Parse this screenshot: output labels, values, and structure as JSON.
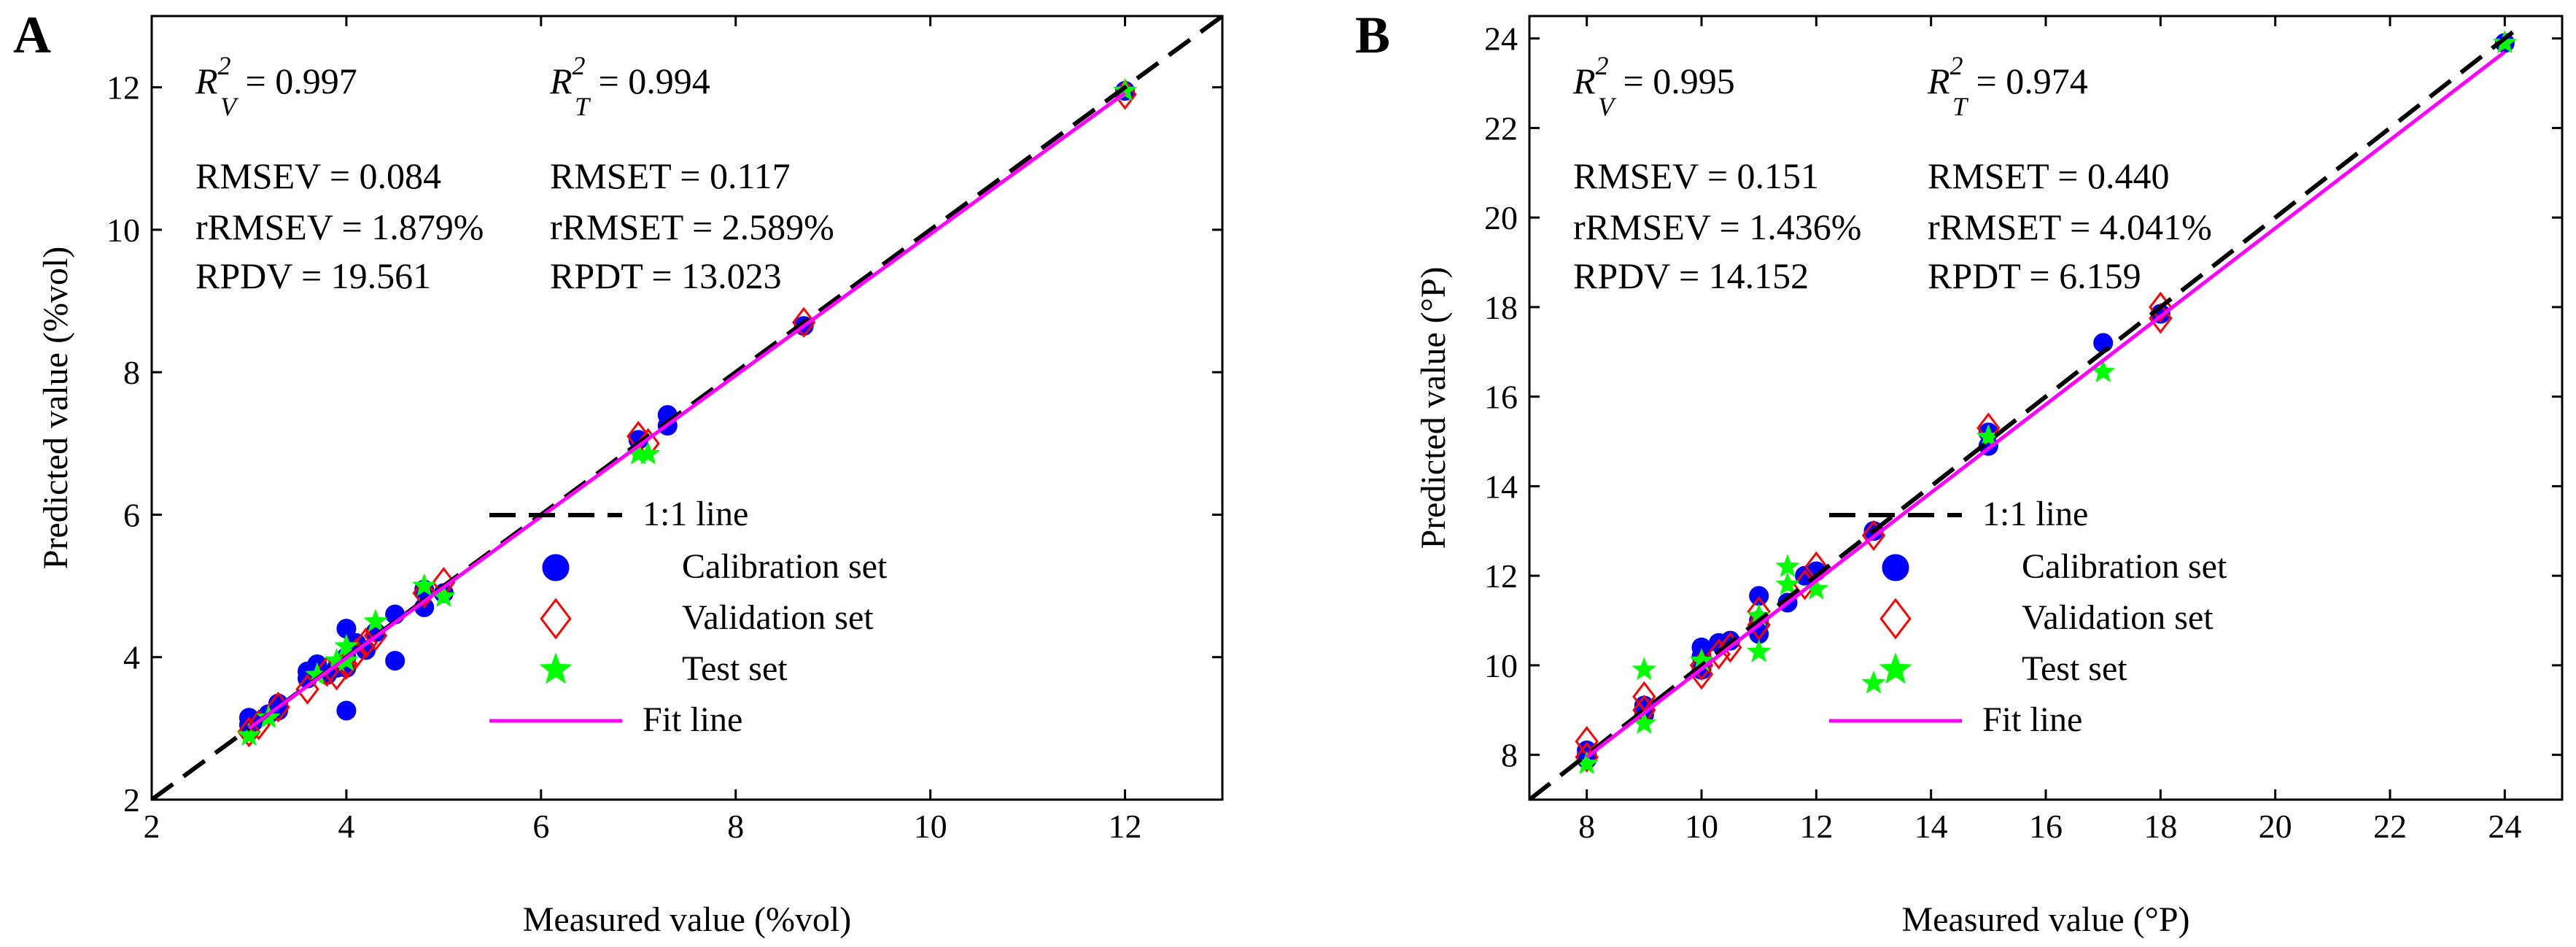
{
  "chart_data": [
    {
      "panel_label": "A",
      "type": "scatter",
      "xlabel": "Measured value (%vol)",
      "ylabel": "Predicted value (%vol)",
      "xlim": [
        2,
        13
      ],
      "ylim": [
        2,
        13
      ],
      "xticks": [
        2,
        4,
        6,
        8,
        10,
        12
      ],
      "yticks": [
        2,
        4,
        6,
        8,
        10,
        12
      ],
      "grid": false,
      "stats_left": {
        "r2_label": "R",
        "r2_sup": "2",
        "r2_sub": "V",
        "r2_value": " = 0.997",
        "rmse": "RMSEV = 0.084",
        "rrmse": "rRMSEV = 1.879%",
        "rpd": "RPDV = 19.561"
      },
      "stats_right": {
        "r2_label": "R",
        "r2_sup": "2",
        "r2_sub": "T",
        "r2_value": " = 0.994",
        "rmse": "RMSET = 0.117",
        "rrmse": "rRMSET = 2.589%",
        "rpd": "RPDT = 13.023"
      },
      "legend_position": "bottom-right",
      "legend": [
        "1:1 line",
        "Calibration set",
        "Validation set",
        "Test set",
        "Fit line"
      ],
      "identity_line": [
        [
          2,
          2
        ],
        [
          13,
          13
        ]
      ],
      "fit_line": {
        "x": [
          3,
          12
        ],
        "y": [
          3.0,
          11.92
        ]
      },
      "series": [
        {
          "name": "Calibration set",
          "marker": "circle",
          "color": "#0000FF",
          "points": [
            [
              3.0,
              3.15
            ],
            [
              3.0,
              3.05
            ],
            [
              3.05,
              3.1
            ],
            [
              3.2,
              3.2
            ],
            [
              3.3,
              3.35
            ],
            [
              3.3,
              3.25
            ],
            [
              3.6,
              3.7
            ],
            [
              3.6,
              3.8
            ],
            [
              3.7,
              3.9
            ],
            [
              3.8,
              3.75
            ],
            [
              3.9,
              3.85
            ],
            [
              4.0,
              4.0
            ],
            [
              4.0,
              3.85
            ],
            [
              4.0,
              4.4
            ],
            [
              4.0,
              3.25
            ],
            [
              4.1,
              4.2
            ],
            [
              4.2,
              4.1
            ],
            [
              4.3,
              4.35
            ],
            [
              4.5,
              4.6
            ],
            [
              4.5,
              3.95
            ],
            [
              4.8,
              4.7
            ],
            [
              4.8,
              4.95
            ],
            [
              5.0,
              4.9
            ],
            [
              7.0,
              7.05
            ],
            [
              7.3,
              7.4
            ],
            [
              7.3,
              7.25
            ],
            [
              8.7,
              8.65
            ],
            [
              12.0,
              11.95
            ]
          ]
        },
        {
          "name": "Validation set",
          "marker": "diamond",
          "color": "#FF0000",
          "points": [
            [
              3.0,
              2.95
            ],
            [
              3.1,
              3.05
            ],
            [
              3.3,
              3.3
            ],
            [
              3.6,
              3.55
            ],
            [
              3.8,
              3.8
            ],
            [
              3.9,
              3.75
            ],
            [
              4.0,
              3.9
            ],
            [
              4.1,
              4.05
            ],
            [
              4.2,
              4.2
            ],
            [
              4.3,
              4.3
            ],
            [
              4.8,
              4.9
            ],
            [
              5.0,
              5.05
            ],
            [
              7.0,
              7.1
            ],
            [
              7.1,
              7.0
            ],
            [
              8.7,
              8.7
            ],
            [
              12.0,
              11.9
            ]
          ]
        },
        {
          "name": "Test set",
          "marker": "star",
          "color": "#00FF00",
          "points": [
            [
              3.0,
              2.9
            ],
            [
              3.2,
              3.15
            ],
            [
              3.7,
              3.75
            ],
            [
              3.9,
              3.95
            ],
            [
              4.0,
              4.15
            ],
            [
              4.0,
              3.95
            ],
            [
              4.3,
              4.5
            ],
            [
              4.8,
              5.0
            ],
            [
              5.0,
              4.85
            ],
            [
              7.0,
              6.85
            ],
            [
              7.1,
              6.85
            ],
            [
              12.0,
              11.95
            ]
          ]
        }
      ]
    },
    {
      "panel_label": "B",
      "type": "scatter",
      "xlabel": "Measured value (°P)",
      "ylabel": "Predicted value (°P)",
      "xlim": [
        7,
        25
      ],
      "ylim": [
        7,
        24.5
      ],
      "xticks": [
        8,
        10,
        12,
        14,
        16,
        18,
        20,
        22,
        24
      ],
      "yticks": [
        8,
        10,
        12,
        14,
        16,
        18,
        20,
        22,
        24
      ],
      "grid": false,
      "stats_left": {
        "r2_label": "R",
        "r2_sup": "2",
        "r2_sub": "V",
        "r2_value": " = 0.995",
        "rmse": "RMSEV = 0.151",
        "rrmse": "rRMSEV = 1.436%",
        "rpd": "RPDV = 14.152"
      },
      "stats_right": {
        "r2_label": "R",
        "r2_sup": "2",
        "r2_sub": "T",
        "r2_value": " = 0.974",
        "rmse": "RMSET = 0.440",
        "rrmse": "rRMSET = 4.041%",
        "rpd": "RPDT = 6.159"
      },
      "legend_position": "bottom-right",
      "legend": [
        "1:1 line",
        "Calibration set",
        "Validation set",
        "Test set",
        "Fit line"
      ],
      "identity_line": [
        [
          7,
          7
        ],
        [
          24.3,
          24.3
        ]
      ],
      "fit_line": {
        "x": [
          8,
          24
        ],
        "y": [
          7.95,
          23.7
        ]
      },
      "series": [
        {
          "name": "Calibration set",
          "marker": "circle",
          "color": "#0000FF",
          "points": [
            [
              8.0,
              8.0
            ],
            [
              8.0,
              7.9
            ],
            [
              8.0,
              8.1
            ],
            [
              9.0,
              9.1
            ],
            [
              9.0,
              8.9
            ],
            [
              10.0,
              10.2
            ],
            [
              10.0,
              10.4
            ],
            [
              10.0,
              9.9
            ],
            [
              10.3,
              10.5
            ],
            [
              10.5,
              10.55
            ],
            [
              11.0,
              11.55
            ],
            [
              11.0,
              11.0
            ],
            [
              11.0,
              10.7
            ],
            [
              11.5,
              11.4
            ],
            [
              11.8,
              12.0
            ],
            [
              12.0,
              12.1
            ],
            [
              13.0,
              13.0
            ],
            [
              15.0,
              14.9
            ],
            [
              15.0,
              15.2
            ],
            [
              17.0,
              17.2
            ],
            [
              18.0,
              17.85
            ],
            [
              24.0,
              23.9
            ]
          ]
        },
        {
          "name": "Validation set",
          "marker": "diamond",
          "color": "#FF0000",
          "points": [
            [
              8.0,
              8.3
            ],
            [
              8.0,
              7.95
            ],
            [
              9.0,
              9.3
            ],
            [
              9.0,
              9.0
            ],
            [
              10.0,
              9.8
            ],
            [
              10.0,
              10.0
            ],
            [
              10.3,
              10.25
            ],
            [
              10.5,
              10.4
            ],
            [
              11.0,
              10.9
            ],
            [
              11.0,
              11.2
            ],
            [
              11.8,
              11.8
            ],
            [
              12.0,
              12.2
            ],
            [
              13.0,
              12.9
            ],
            [
              15.0,
              15.3
            ],
            [
              18.0,
              18.0
            ],
            [
              18.0,
              17.75
            ]
          ]
        },
        {
          "name": "Test set",
          "marker": "star",
          "color": "#00FF00",
          "points": [
            [
              8.0,
              7.8
            ],
            [
              9.0,
              9.9
            ],
            [
              9.0,
              8.7
            ],
            [
              10.0,
              10.1
            ],
            [
              11.0,
              10.3
            ],
            [
              11.0,
              11.1
            ],
            [
              11.5,
              12.2
            ],
            [
              11.5,
              11.8
            ],
            [
              12.0,
              11.7
            ],
            [
              13.0,
              9.6
            ],
            [
              15.0,
              15.1
            ],
            [
              17.0,
              16.55
            ],
            [
              24.0,
              23.9
            ]
          ]
        }
      ]
    }
  ]
}
